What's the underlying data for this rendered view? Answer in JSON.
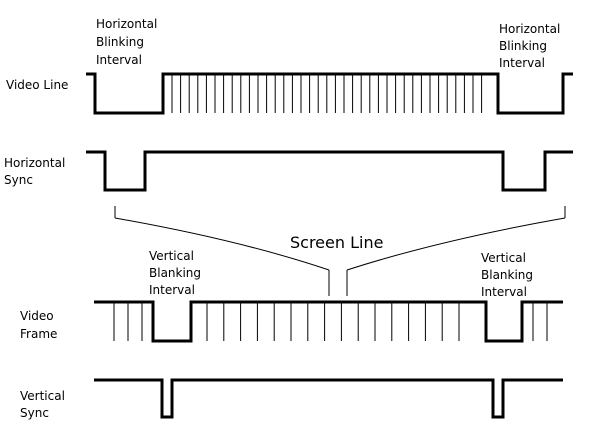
{
  "rows": {
    "video_line": "Video Line",
    "horizontal_sync": [
      "Horizontal",
      "Sync"
    ],
    "video_frame": [
      "Video",
      "Frame"
    ],
    "vertical_sync": [
      "Vertical",
      "Sync"
    ]
  },
  "annotations": {
    "horizontal_blanking_left": [
      "Horizontal",
      "Blinking",
      "Interval"
    ],
    "horizontal_blanking_right": [
      "Horizontal",
      "Blinking",
      "Interval"
    ],
    "vertical_blanking_left": [
      "Vertical",
      "Blanking",
      "Interval"
    ],
    "vertical_blanking_right": [
      "Vertical",
      "Blanking",
      "Interval"
    ],
    "screen_line": "Screen Line"
  },
  "colors": {
    "line": "#000000",
    "background": "#ffffff"
  }
}
